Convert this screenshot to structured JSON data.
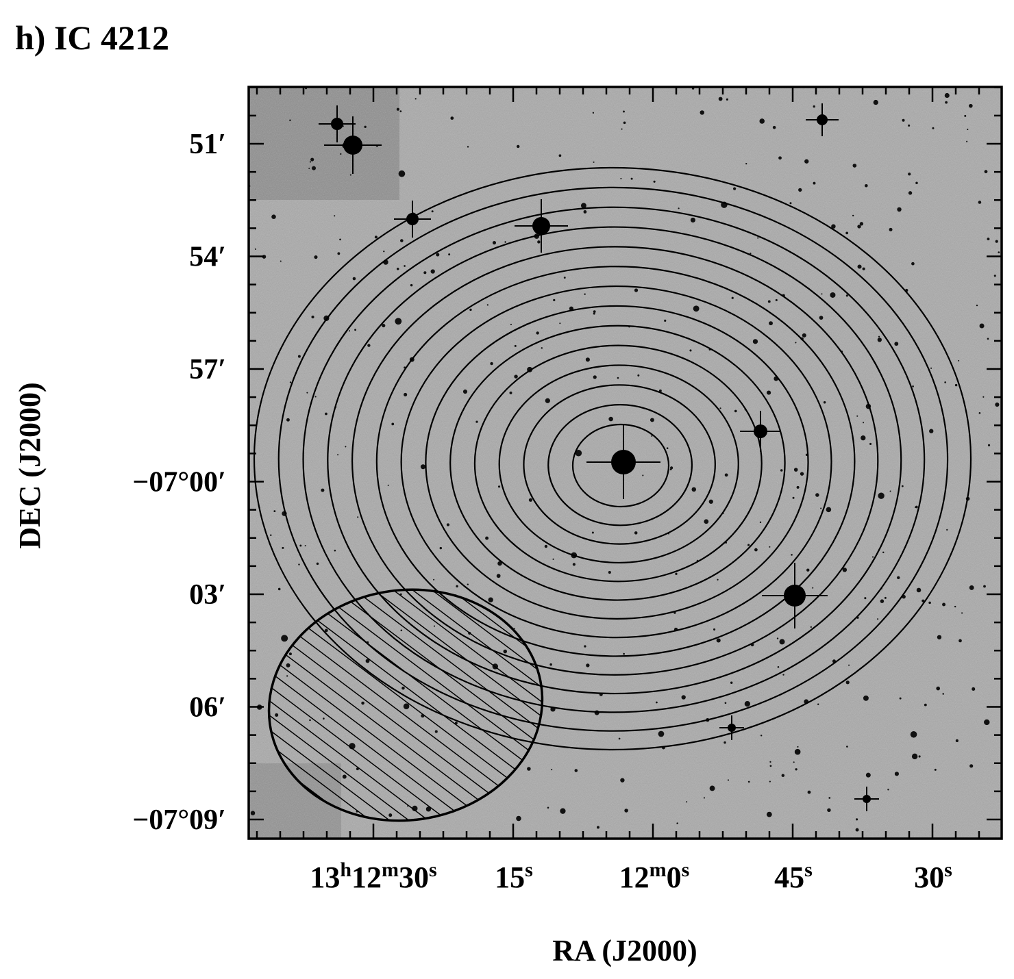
{
  "title": "h) IC 4212",
  "x_axis": {
    "label": "RA (J2000)",
    "ticks": [
      [
        {
          "text": "13",
          "sup": false
        },
        {
          "text": "h",
          "sup": true
        },
        {
          "text": "12",
          "sup": false
        },
        {
          "text": "m",
          "sup": true
        },
        {
          "text": "30",
          "sup": false
        },
        {
          "text": "s",
          "sup": true
        }
      ],
      [
        {
          "text": "15",
          "sup": false
        },
        {
          "text": "s",
          "sup": true
        }
      ],
      [
        {
          "text": "12",
          "sup": false
        },
        {
          "text": "m",
          "sup": true
        },
        {
          "text": "0",
          "sup": false
        },
        {
          "text": "s",
          "sup": true
        }
      ],
      [
        {
          "text": "45",
          "sup": false
        },
        {
          "text": "s",
          "sup": true
        }
      ],
      [
        {
          "text": "30",
          "sup": false
        },
        {
          "text": "s",
          "sup": true
        }
      ]
    ]
  },
  "y_axis": {
    "label": "DEC (J2000)",
    "ticks": [
      "51′",
      "54′",
      "57′",
      "−07°00′",
      "03′",
      "06′",
      "−07°09′"
    ]
  }
}
